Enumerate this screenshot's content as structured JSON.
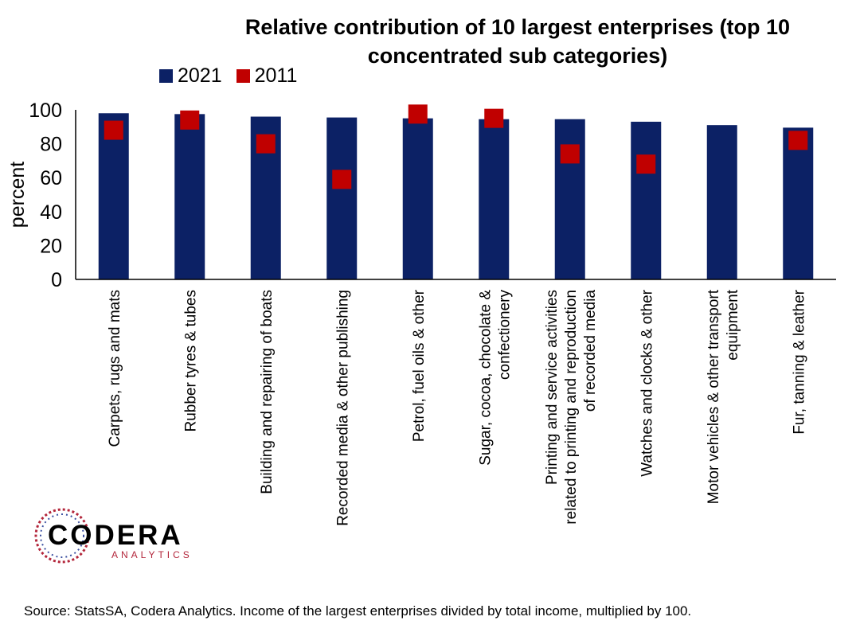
{
  "chart_data": {
    "type": "bar",
    "title_lines": [
      "Relative contribution of 10 largest enterprises (top 10",
      "concentrated sub categories)"
    ],
    "ylabel": "percent",
    "ylim": [
      0,
      100
    ],
    "yticks": [
      "0",
      "20",
      "40",
      "60",
      "80",
      "100"
    ],
    "categories": [
      [
        "Carpets, rugs and mats"
      ],
      [
        "Rubber tyres & tubes"
      ],
      [
        "Building and repairing of boats"
      ],
      [
        "Recorded media & other publishing"
      ],
      [
        "Petrol, fuel oils & other"
      ],
      [
        "Sugar, cocoa, chocolate &",
        "confectionery"
      ],
      [
        "Printing and service activities",
        "related to printing and reproduction",
        "of recorded media"
      ],
      [
        "Watches and clocks & other"
      ],
      [
        "Motor vehicles & other transport",
        "equipment"
      ],
      [
        "Fur, tanning & leather"
      ]
    ],
    "series": [
      {
        "name": "2021",
        "type": "bar",
        "color": "#0c2165",
        "values": [
          98,
          97.5,
          96,
          95.5,
          95,
          94.5,
          94.5,
          93,
          91,
          89.5
        ]
      },
      {
        "name": "2011",
        "type": "marker",
        "color": "#c00000",
        "values": [
          88,
          94,
          80,
          59,
          97.5,
          95,
          74,
          68,
          null,
          82
        ]
      }
    ],
    "legend_position": "top-left",
    "grid": false
  },
  "logo": {
    "word": "CODERA",
    "sub": "ANALYTICS"
  },
  "source_note": "Source: StatsSA, Codera Analytics. Income of the largest enterprises divided by total income, multiplied by 100."
}
